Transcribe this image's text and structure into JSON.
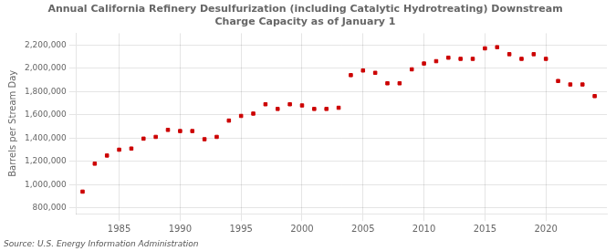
{
  "chart_data": {
    "type": "scatter",
    "title": "Annual California Refinery Desulfurization (including Catalytic Hydrotreating) Downstream\nCharge Capacity as of January 1",
    "ylabel": "Barrels per Stream Day",
    "annotations": [
      "Source: U.S. Energy Information Administration"
    ],
    "x": [
      1982,
      1983,
      1984,
      1985,
      1986,
      1987,
      1988,
      1989,
      1990,
      1991,
      1992,
      1993,
      1994,
      1995,
      1996,
      1997,
      1998,
      1999,
      2000,
      2001,
      2002,
      2003,
      2004,
      2005,
      2006,
      2007,
      2008,
      2009,
      2010,
      2011,
      2012,
      2013,
      2014,
      2015,
      2016,
      2017,
      2018,
      2019,
      2020,
      2021,
      2022,
      2023,
      2024
    ],
    "values": [
      940000,
      1180000,
      1250000,
      1300000,
      1310000,
      1395000,
      1410000,
      1470000,
      1460000,
      1460000,
      1390000,
      1410000,
      1550000,
      1590000,
      1610000,
      1690000,
      1650000,
      1690000,
      1680000,
      1650000,
      1650000,
      1660000,
      1940000,
      1980000,
      1960000,
      1870000,
      1870000,
      1990000,
      2040000,
      2060000,
      2090000,
      2080000,
      2080000,
      2170000,
      2180000,
      2120000,
      2080000,
      2120000,
      2080000,
      1890000,
      1860000,
      1860000,
      1760000
    ],
    "color": "#cc0000",
    "marker": "square",
    "xlim": [
      1981.5,
      2025
    ],
    "xticks": [
      1985,
      1990,
      1995,
      2000,
      2005,
      2010,
      2015,
      2020
    ],
    "ylim": [
      750000,
      2300000
    ],
    "yticks": [
      {
        "value": 800000,
        "label": "800,000"
      },
      {
        "value": 1000000,
        "label": "1,000,000"
      },
      {
        "value": 1200000,
        "label": "1,200,000"
      },
      {
        "value": 1400000,
        "label": "1,400,000"
      },
      {
        "value": 1600000,
        "label": "1,600,000"
      },
      {
        "value": 1800000,
        "label": "1,800,000"
      },
      {
        "value": 2000000,
        "label": "2,000,000"
      },
      {
        "value": 2200000,
        "label": "2,200,000"
      }
    ],
    "grid": true
  }
}
